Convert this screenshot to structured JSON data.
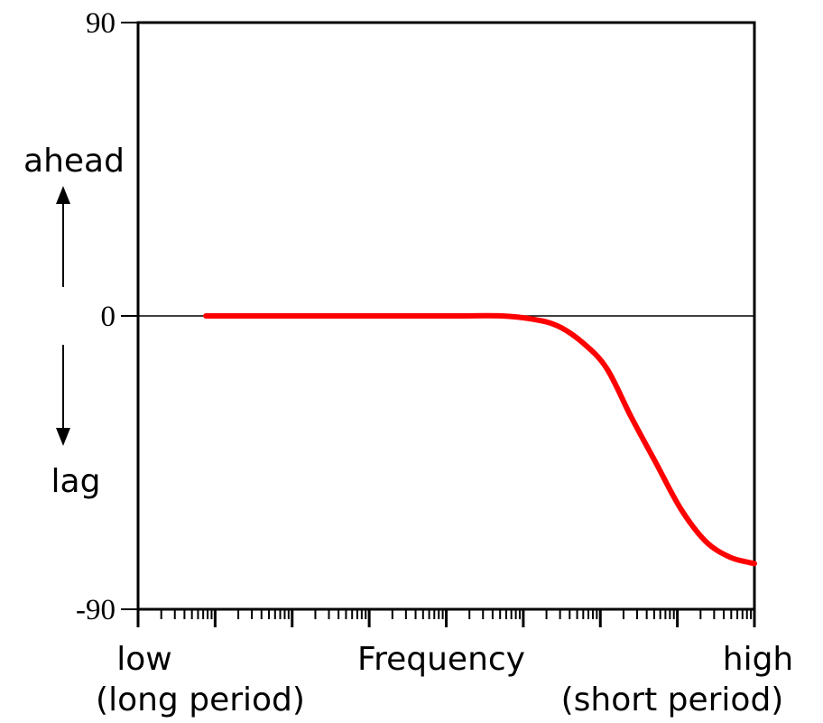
{
  "chart_data": {
    "type": "line",
    "title": "",
    "xlabel": "Frequency",
    "x_scale": "log",
    "x_end_labels": {
      "low": "low",
      "low_sub": "(long period)",
      "high": "high",
      "high_sub": "(short period)"
    },
    "y_ticks": [
      "90",
      "0",
      "-90"
    ],
    "ylim": [
      -90,
      90
    ],
    "y_annotations": {
      "up": "ahead",
      "down": "lag"
    },
    "reference_line_y": 0,
    "series": [
      {
        "color": "#ff0000",
        "points": [
          [
            0.11,
            0
          ],
          [
            0.3,
            0
          ],
          [
            0.5,
            0
          ],
          [
            0.59,
            0
          ],
          [
            0.64,
            -1
          ],
          [
            0.68,
            -3
          ],
          [
            0.72,
            -8
          ],
          [
            0.76,
            -16
          ],
          [
            0.8,
            -31
          ],
          [
            0.84,
            -45
          ],
          [
            0.88,
            -59
          ],
          [
            0.92,
            -69
          ],
          [
            0.96,
            -74
          ],
          [
            1.0,
            -76
          ]
        ]
      }
    ],
    "grid": false,
    "legend": "none"
  }
}
